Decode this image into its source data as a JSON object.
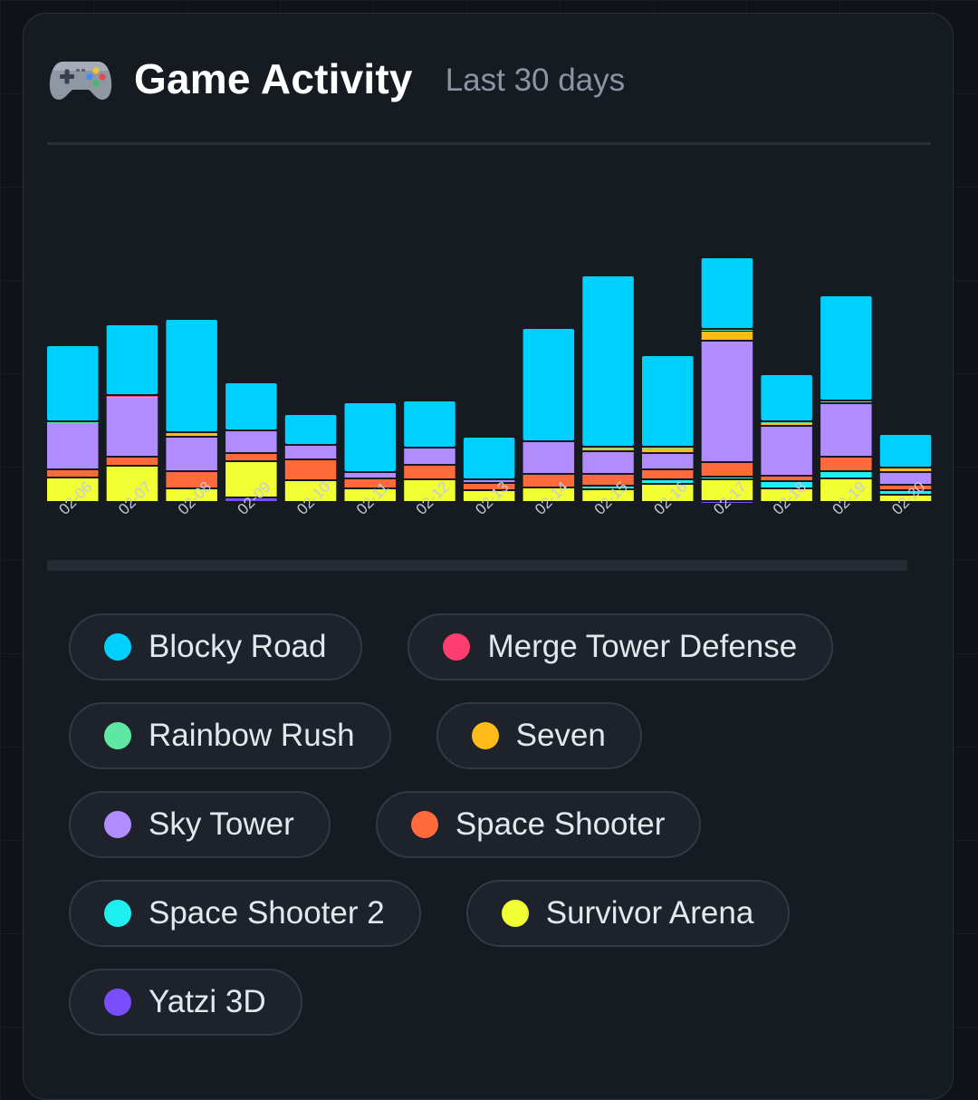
{
  "header": {
    "title": "Game Activity",
    "subtitle": "Last 30 days",
    "icon": "gamepad-icon"
  },
  "colors": {
    "Blocky Road": "#00d0ff",
    "Merge Tower Defense": "#ff3d6e",
    "Rainbow Rush": "#5ee8a4",
    "Seven": "#ffbb1a",
    "Sky Tower": "#b18cff",
    "Space Shooter": "#ff6a3d",
    "Space Shooter 2": "#1ef0f0",
    "Survivor Arena": "#f2ff33",
    "Yatzi 3D": "#7a4dff"
  },
  "legend": [
    {
      "name": "Blocky Road",
      "color": "#00d0ff"
    },
    {
      "name": "Merge Tower Defense",
      "color": "#ff3d6e"
    },
    {
      "name": "Rainbow Rush",
      "color": "#5ee8a4"
    },
    {
      "name": "Seven",
      "color": "#ffbb1a"
    },
    {
      "name": "Sky Tower",
      "color": "#b18cff"
    },
    {
      "name": "Space Shooter",
      "color": "#ff6a3d"
    },
    {
      "name": "Space Shooter 2",
      "color": "#1ef0f0"
    },
    {
      "name": "Survivor Arena",
      "color": "#f2ff33"
    },
    {
      "name": "Yatzi 3D",
      "color": "#7a4dff"
    }
  ],
  "chart_data": {
    "type": "bar",
    "stacked": true,
    "title": "",
    "xlabel": "",
    "ylabel": "",
    "grid": false,
    "legend_position": "bottom",
    "ylim": [
      0,
      350
    ],
    "categories": [
      "02-06",
      "02-07",
      "02-08",
      "02-09",
      "02-10",
      "02-11",
      "02-12",
      "02-13",
      "02-14",
      "02-15",
      "02-16",
      "02-17",
      "02-18",
      "02-19",
      "02-20"
    ],
    "series": [
      {
        "name": "Yatzi 3D",
        "values": [
          0,
          0,
          0,
          5,
          0,
          0,
          0,
          0,
          0,
          0,
          0,
          1,
          0,
          0,
          0
        ]
      },
      {
        "name": "Survivor Arena",
        "values": [
          27,
          40,
          15,
          40,
          24,
          15,
          25,
          13,
          16,
          14,
          20,
          24,
          15,
          26,
          8
        ]
      },
      {
        "name": "Space Shooter 2",
        "values": [
          0,
          0,
          0,
          0,
          0,
          0,
          0,
          0,
          0,
          4,
          5,
          3,
          8,
          8,
          5
        ]
      },
      {
        "name": "Space Shooter",
        "values": [
          9,
          10,
          19,
          9,
          23,
          11,
          16,
          8,
          15,
          13,
          11,
          16,
          6,
          16,
          6
        ]
      },
      {
        "name": "Sky Tower",
        "values": [
          52,
          66,
          38,
          25,
          16,
          7,
          19,
          4,
          36,
          25,
          18,
          134,
          55,
          59,
          14
        ]
      },
      {
        "name": "Seven",
        "values": [
          0,
          0,
          4,
          0,
          0,
          0,
          0,
          0,
          0,
          4,
          6,
          11,
          4,
          0,
          5
        ]
      },
      {
        "name": "Rainbow Rush",
        "values": [
          1,
          1,
          1,
          0,
          0,
          0,
          0,
          0,
          0,
          1,
          1,
          2,
          1,
          3,
          0
        ]
      },
      {
        "name": "Merge Tower Defense",
        "values": [
          0,
          1,
          0,
          0,
          0,
          0,
          0,
          0,
          0,
          0,
          0,
          0,
          0,
          0,
          0
        ]
      },
      {
        "name": "Blocky Road",
        "values": [
          84,
          78,
          125,
          53,
          34,
          77,
          52,
          47,
          125,
          189,
          101,
          79,
          52,
          116,
          37
        ]
      }
    ]
  }
}
